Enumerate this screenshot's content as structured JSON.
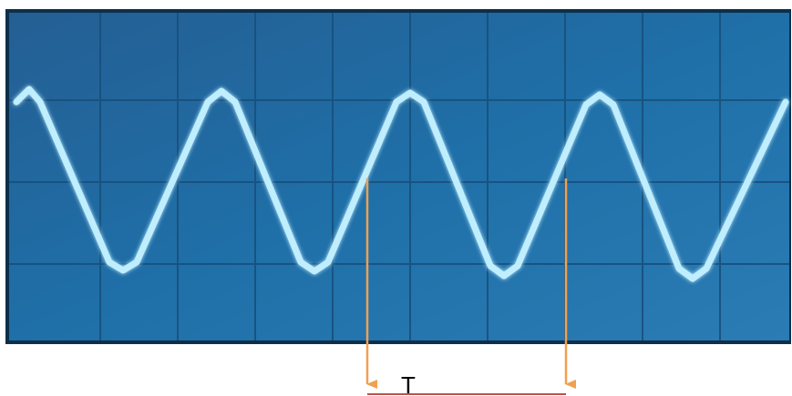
{
  "figure": {
    "period_label": "T",
    "colors": {
      "screen_background": "#1f6fa8",
      "screen_border": "#0d2f4a",
      "grid_line": "#174f7a",
      "waveform": "#bfeeff",
      "waveform_glow": "#7fd7ff",
      "marker_arrow": "#f0a050",
      "period_bracket": "#c05050"
    },
    "icons": {
      "waveform": "triangle-wave-icon",
      "marker": "down-arrow-icon"
    }
  }
}
